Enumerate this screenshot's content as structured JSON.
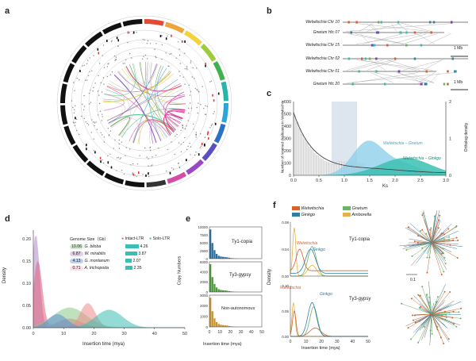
{
  "panel_letters": {
    "a": "a",
    "b": "b",
    "c": "c",
    "d": "d",
    "e": "e",
    "f": "f"
  },
  "panel_b": {
    "tracks_top": [
      "Welwitschia Chr 10",
      "Gnetum Hic 07",
      "Welwitschia Chr 15"
    ],
    "tracks_bottom": [
      "Welwitschia Chr 02",
      "Welwitschia Chr 01",
      "Gnetum Hic 20"
    ],
    "scale_top": "1 Mb",
    "scale_bottom": "1 Mb"
  },
  "panel_c": {
    "ylabel_left": "Number of retained duplicates in Welwitschia",
    "ylabel_right": "Ortholog density",
    "xlabel": "Ks",
    "xticks": [
      "0.0",
      "0.5",
      "1.0",
      "1.5",
      "2.0",
      "2.5",
      "3.0"
    ],
    "yticks_left": [
      "0",
      "100",
      "200",
      "300",
      "400",
      "500",
      "600"
    ],
    "yticks_right": [
      "0",
      "1",
      "2"
    ],
    "ann_gnetum": "Welwitschia – Gnetum",
    "ann_ginkgo": "Welwitschia – Ginkgo"
  },
  "panel_d": {
    "ylabel": "Density",
    "xlabel": "Insertion time (mya)",
    "xticks": [
      "0",
      "10",
      "20",
      "30",
      "40",
      "50"
    ],
    "yticks": [
      "0.00",
      "0.05",
      "0.10",
      "0.15",
      "0.20"
    ],
    "legend_title": "Genome Size（Gb）",
    "legend_intact": "Intact-LTR",
    "legend_solo": "Solo-LTR",
    "species": [
      {
        "size": "10.06",
        "name": "G. biloba",
        "value": "4.26"
      },
      {
        "size": "6.87",
        "name": "W. mirabilis",
        "value": "3.87"
      },
      {
        "size": "4.13",
        "name": "G. montanum",
        "value": "2.07"
      },
      {
        "size": "0.71",
        "name": "A. trichopoda",
        "value": "2.35"
      }
    ]
  },
  "panel_e": {
    "ylabel": "Copy Numbers",
    "xlabel": "Insertion time (mya)",
    "xticks": [
      "0",
      "10",
      "20",
      "30",
      "40",
      "50"
    ],
    "subplots": [
      {
        "label": "Ty1-copia",
        "yticks": [
          "0",
          "2500",
          "5000",
          "7500",
          "10000"
        ]
      },
      {
        "label": "Ty3-gypsy",
        "yticks": [
          "0",
          "2000",
          "4000",
          "6000"
        ]
      },
      {
        "label": "Non-autonomous",
        "yticks": [
          "0",
          "1000",
          "2000",
          "3000"
        ]
      }
    ]
  },
  "panel_f": {
    "legend": [
      "Welwitschia",
      "Gnetum",
      "Ginkgo",
      "Amborella"
    ],
    "ylabel": "Density",
    "xlabel": "Insertion time (mya)",
    "xticks": [
      "0",
      "10",
      "20",
      "30",
      "40",
      "50"
    ],
    "top_label": "Ty1-copia",
    "top_yticks": [
      "0.00",
      "0.04",
      "0.08"
    ],
    "top_ann_welw": "Welwitschia",
    "top_ann_ginkgo": "Ginkgo",
    "bottom_label": "Ty3-gypsy",
    "bottom_yticks": [
      "0.00",
      "0.05",
      "0.10"
    ],
    "bottom_ann_welw": "Welwitschia",
    "bottom_ann_ginkgo": "Ginkgo",
    "tree_scale": "0.1"
  },
  "colors": {
    "welwitschia": "#d9622b",
    "gnetum": "#6bb36a",
    "ginkgo": "#2f7ea8",
    "amborella": "#e2b24d",
    "teal": "#3bbfb2",
    "blue_fill": "#8fd0ea"
  }
}
